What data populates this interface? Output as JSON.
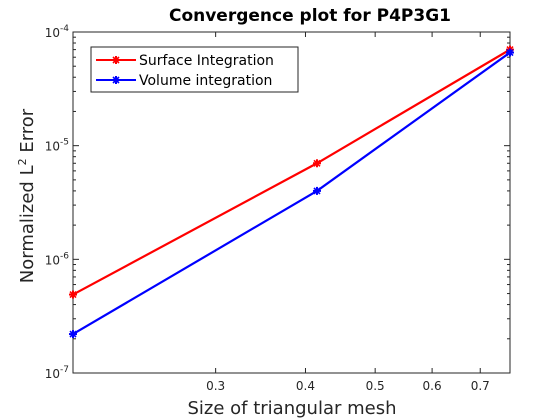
{
  "chart_data": {
    "type": "line",
    "title": "Convergence plot for P4P3G1",
    "xlabel": "Size of triangular mesh",
    "ylabel_main": "Normalized L",
    "ylabel_sup": "2",
    "ylabel_tail": " Error",
    "x_scale": "log",
    "y_scale": "log",
    "xlim": [
      0.19,
      0.77
    ],
    "ylim": [
      1e-07,
      0.0001
    ],
    "x_ticks": [
      {
        "value": 0.3,
        "label": "0.3"
      },
      {
        "value": 0.4,
        "label": "0.4"
      },
      {
        "value": 0.5,
        "label": "0.5"
      },
      {
        "value": 0.6,
        "label": "0.6"
      },
      {
        "value": 0.7,
        "label": "0.7"
      }
    ],
    "y_ticks": [
      {
        "value": 1e-07,
        "base": "10",
        "exp": "-7"
      },
      {
        "value": 1e-06,
        "base": "10",
        "exp": "-6"
      },
      {
        "value": 1e-05,
        "base": "10",
        "exp": "-5"
      },
      {
        "value": 0.0001,
        "base": "10",
        "exp": "-4"
      }
    ],
    "grid": false,
    "legend_position": "top-left",
    "series": [
      {
        "name": "Surface Integration",
        "color": "#ff0000",
        "x": [
          0.19,
          0.415,
          0.77
        ],
        "y": [
          4.9e-07,
          7e-06,
          7e-05
        ]
      },
      {
        "name": "Volume integration",
        "color": "#0000ff",
        "x": [
          0.19,
          0.415,
          0.77
        ],
        "y": [
          2.2e-07,
          4e-06,
          6.6e-05
        ]
      }
    ]
  }
}
